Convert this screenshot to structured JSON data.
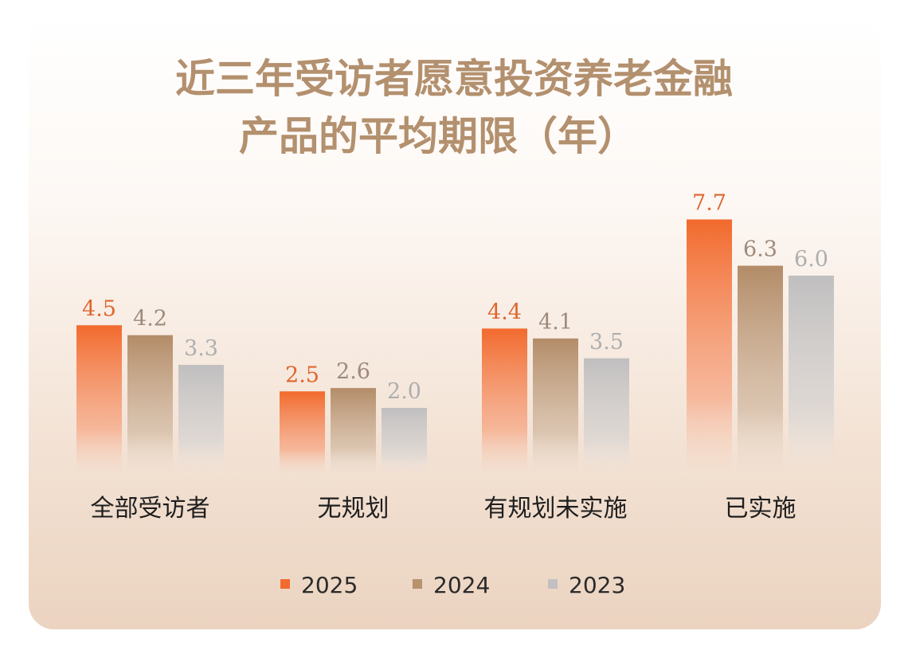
{
  "chart_data": {
    "type": "bar",
    "title": [
      "近三年受访者愿意投资养老金融",
      "产品的平均期限（年）"
    ],
    "categories": [
      "全部受访者",
      "无规划",
      "有规划未实施",
      "已实施"
    ],
    "series": [
      {
        "name": "2025",
        "values": [
          4.5,
          2.5,
          4.4,
          7.7
        ],
        "color": "#f26b2e",
        "label_color": "#e0652f"
      },
      {
        "name": "2024",
        "values": [
          4.2,
          2.6,
          4.1,
          6.3
        ],
        "color": "#b8916e",
        "label_color": "#9e8a7c"
      },
      {
        "name": "2023",
        "values": [
          3.3,
          2.0,
          3.5,
          6.0
        ],
        "color": "#c2c0c0",
        "label_color": "#aeaeae"
      }
    ],
    "xlabel": "",
    "ylabel": "",
    "ylim": [
      0,
      9
    ],
    "grid": false,
    "legend": "bottom"
  }
}
